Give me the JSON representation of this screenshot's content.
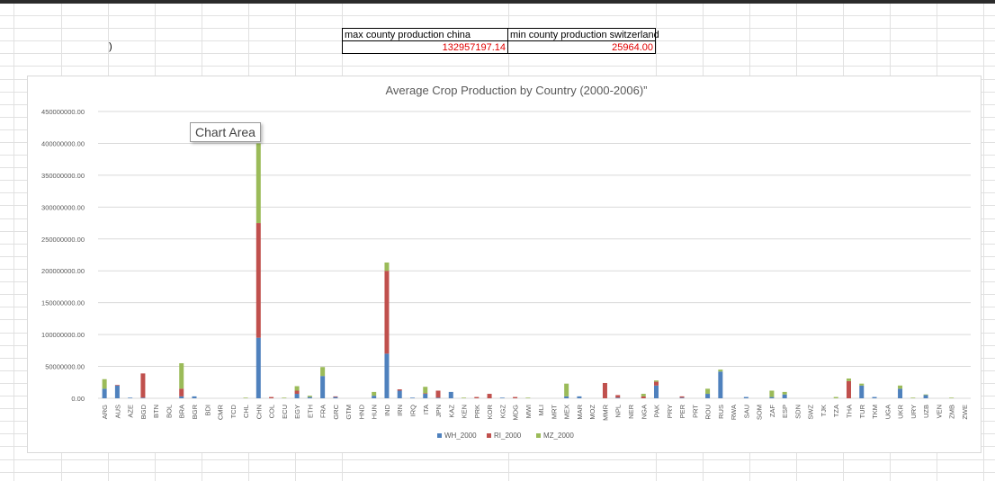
{
  "sheet": {
    "max_label": "max county production china",
    "max_value": "132957197.14",
    "min_label": "min county production  switzerland",
    "min_value": "25964.00",
    "paren": ")"
  },
  "tooltip": "Chart Area",
  "chart_data": {
    "type": "bar",
    "stacked": true,
    "title": "Average Crop Production by Country (2000-2006)”",
    "ylim": [
      0,
      450000000
    ],
    "yticks": [
      "0.00",
      "50000000.00",
      "100000000.00",
      "150000000.00",
      "200000000.00",
      "250000000.00",
      "300000000.00",
      "350000000.00",
      "400000000.00",
      "450000000.00"
    ],
    "grid": true,
    "legend_position": "bottom",
    "categories": [
      "ARG",
      "AUS",
      "AZE",
      "BGD",
      "BTN",
      "BOL",
      "BRA",
      "BGR",
      "BDI",
      "CMR",
      "TCD",
      "CHL",
      "CHN",
      "COL",
      "ECU",
      "EGY",
      "ETH",
      "FRA",
      "GRC",
      "GTM",
      "HND",
      "HUN",
      "IND",
      "IRN",
      "IRQ",
      "ITA",
      "JPN",
      "KAZ",
      "KEN",
      "PRK",
      "KOR",
      "KGZ",
      "MDG",
      "MWI",
      "MLI",
      "MRT",
      "MEX",
      "MAR",
      "MOZ",
      "MMR",
      "NPL",
      "NER",
      "NGA",
      "PAK",
      "PRY",
      "PER",
      "PRT",
      "ROU",
      "RUS",
      "RWA",
      "SAU",
      "SOM",
      "ZAF",
      "ESP",
      "SDN",
      "SWZ",
      "TJK",
      "TZA",
      "THA",
      "TUR",
      "TKM",
      "UGA",
      "UKR",
      "URY",
      "UZB",
      "VEN",
      "ZMB",
      "ZWE"
    ],
    "series": [
      {
        "name": "WH_2000",
        "color": "#4f81bd",
        "values": [
          15000000,
          20000000,
          1000000,
          1000000,
          0,
          0,
          3000000,
          3000000,
          0,
          0,
          0,
          0,
          95000000,
          0,
          0,
          7000000,
          2000000,
          35000000,
          2000000,
          0,
          0,
          4000000,
          70000000,
          12000000,
          1000000,
          7000000,
          1000000,
          10000000,
          0,
          0,
          0,
          1000000,
          0,
          0,
          0,
          0,
          3000000,
          3000000,
          0,
          0,
          1000000,
          0,
          0,
          20000000,
          0,
          1000000,
          0,
          7000000,
          42000000,
          0,
          2000000,
          0,
          2000000,
          6000000,
          0,
          0,
          0,
          0,
          0,
          20000000,
          2000000,
          0,
          15000000,
          0,
          5000000,
          0,
          0,
          0
        ]
      },
      {
        "name": "RI_2000",
        "color": "#c0504d",
        "values": [
          0,
          1000000,
          0,
          38000000,
          0,
          0,
          12000000,
          0,
          0,
          0,
          0,
          0,
          180000000,
          2000000,
          0,
          5000000,
          0,
          0,
          1000000,
          0,
          0,
          0,
          130000000,
          2000000,
          0,
          1000000,
          11000000,
          0,
          0,
          2000000,
          7000000,
          0,
          2000000,
          0,
          0,
          0,
          0,
          0,
          0,
          24000000,
          4000000,
          0,
          3000000,
          6000000,
          0,
          2000000,
          0,
          0,
          0,
          0,
          0,
          0,
          0,
          0,
          0,
          0,
          0,
          0,
          27000000,
          0,
          0,
          0,
          0,
          0,
          0,
          0,
          0,
          0
        ]
      },
      {
        "name": "MZ_2000",
        "color": "#9bbb59",
        "values": [
          15000000,
          0,
          0,
          0,
          0,
          0,
          40000000,
          0,
          0,
          0,
          0,
          1000000,
          125000000,
          0,
          1000000,
          7000000,
          2000000,
          14000000,
          0,
          0,
          0,
          6000000,
          13000000,
          0,
          0,
          10000000,
          0,
          0,
          1000000,
          0,
          0,
          0,
          0,
          1000000,
          0,
          0,
          20000000,
          0,
          0,
          0,
          0,
          0,
          4000000,
          2000000,
          0,
          0,
          0,
          8000000,
          3000000,
          0,
          0,
          0,
          10000000,
          4000000,
          0,
          0,
          0,
          2000000,
          4000000,
          3000000,
          0,
          0,
          5000000,
          1000000,
          1000000,
          0,
          1000000,
          0
        ]
      }
    ]
  }
}
